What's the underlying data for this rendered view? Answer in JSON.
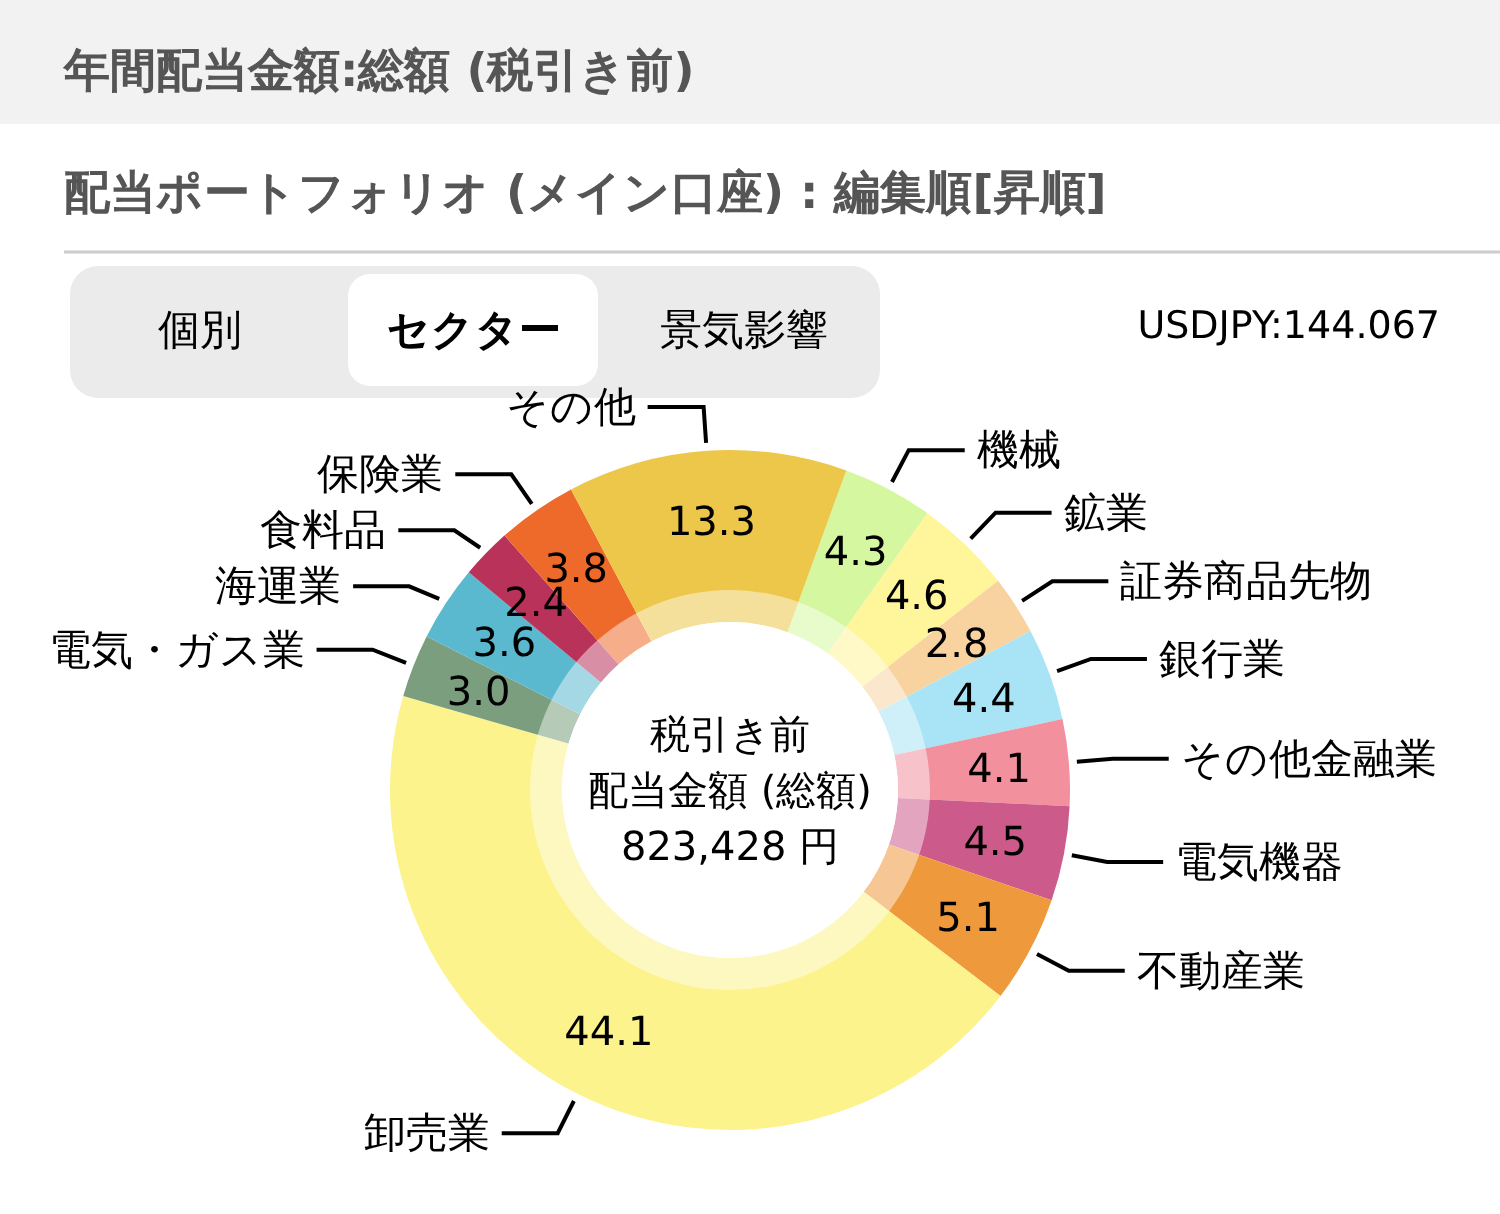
{
  "chart_data": {
    "type": "donut",
    "title": "年間配当金額:総額 (税引き前)",
    "subtitle": "配当ポートフォリオ (メイン口座) : 編集順[昇順]",
    "categories": [
      "機械",
      "鉱業",
      "証券商品先物",
      "銀行業",
      "その他金融業",
      "電気機器",
      "不動産業",
      "卸売業",
      "電気・ガス業",
      "海運業",
      "食料品",
      "保険業",
      "その他"
    ],
    "values": [
      4.3,
      4.6,
      2.8,
      4.4,
      4.1,
      4.5,
      5.1,
      44.1,
      3.0,
      3.6,
      2.4,
      3.8,
      13.3
    ],
    "colors": [
      "#d4f7a0",
      "#fff59a",
      "#f8d3a0",
      "#a8e4f5",
      "#f2909e",
      "#cc5a8a",
      "#ee9a3c",
      "#fcf38c",
      "#7a9e7e",
      "#5ab8cf",
      "#b8325a",
      "#ee6a2a",
      "#edc74a"
    ],
    "value_labels": [
      "4.3",
      "4.6",
      "2.8",
      "4.4",
      "4.1",
      "4.5",
      "5.1",
      "44.1",
      "3.0",
      "3.6",
      "2.4",
      "3.8",
      "13.3"
    ],
    "annotations": [
      "個別",
      "セクター",
      "景気影響",
      "USDJPY:144.067",
      "税引き前",
      "配当金額 (総額)",
      "823,428 円"
    ]
  }
}
